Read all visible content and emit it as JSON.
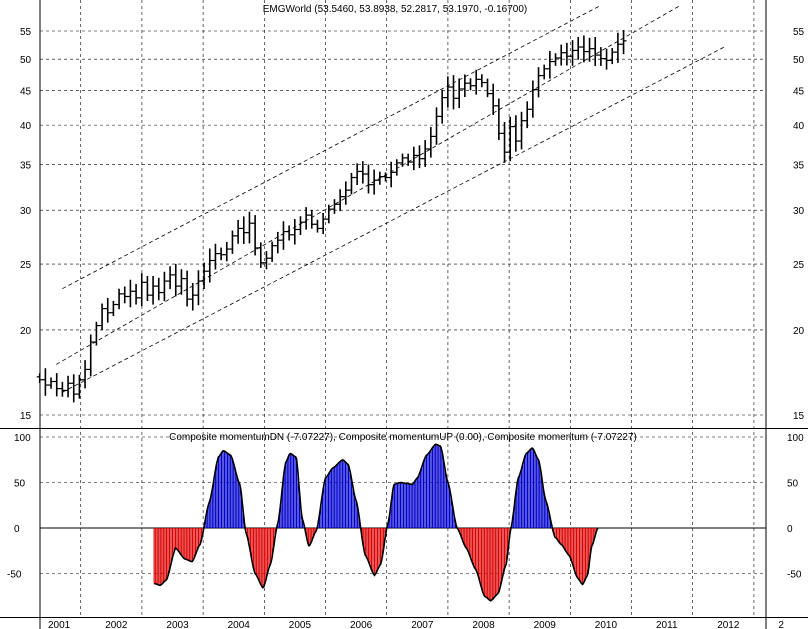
{
  "chart_data": [
    {
      "type": "ohlc",
      "title": "EMGWorld (53.5460, 53.8938, 52.2817, 53.1970, -0.16700)",
      "y_scale": "log",
      "ylim": [
        14.5,
        60
      ],
      "y_ticks": [
        15,
        20,
        25,
        30,
        35,
        40,
        45,
        50,
        55
      ],
      "x_tick_labels": [
        "2001",
        "2002",
        "2003",
        "2004",
        "2005",
        "2006",
        "2007",
        "2008",
        "2009",
        "2010",
        "2011",
        "2012",
        "2"
      ],
      "grid": true,
      "closes": [
        16.9,
        16.6,
        16.8,
        16.4,
        16.3,
        16.7,
        16.1,
        16.9,
        17.5,
        19.2,
        20.3,
        21.5,
        21.2,
        21.8,
        22.6,
        22.4,
        22.8,
        22.3,
        23.5,
        22.5,
        23.2,
        22.7,
        23.6,
        24.1,
        23.2,
        23.8,
        22.2,
        22.5,
        23.6,
        24.4,
        25.3,
        25.9,
        25.8,
        26.3,
        27.5,
        28.2,
        27.8,
        28.7,
        26.4,
        25.1,
        25.5,
        26.6,
        27.1,
        27.9,
        27.6,
        28.1,
        28.8,
        29.5,
        28.6,
        28.2,
        29.1,
        30.1,
        30.6,
        31.4,
        32.1,
        33.5,
        34.2,
        33.9,
        32.7,
        33.2,
        33.6,
        33.5,
        34.1,
        35.2,
        35.8,
        35.3,
        36.1,
        35.7,
        36.9,
        38.5,
        41.2,
        43.9,
        45.5,
        43.8,
        45.2,
        46.1,
        45.7,
        46.7,
        46.2,
        44.5,
        42.7,
        38.9,
        36.5,
        39.8,
        37.9,
        40.6,
        42.2,
        45.1,
        47.3,
        48.4,
        49.6,
        50.2,
        51.1,
        50.5,
        51.5,
        52.1,
        51.3,
        51.8,
        50.7,
        50.1,
        49.8,
        51.2,
        52.6,
        53.2
      ],
      "channel": {
        "upper": [
          [
            2001.3,
            23.0
          ],
          [
            2010.1,
            60.0
          ]
        ],
        "middle": [
          [
            2001.2,
            17.8
          ],
          [
            2011.4,
            60.0
          ]
        ],
        "lower": [
          [
            2001.3,
            16.2
          ],
          [
            2012.15,
            52.3
          ]
        ]
      }
    },
    {
      "type": "bar",
      "title": "Composite momentumDN (-7.07227), Composite momentumUP (0.00), Composite momentum (-7.07227)",
      "ylim": [
        -90,
        105
      ],
      "y_ticks": [
        100,
        50,
        0,
        -50
      ],
      "series": [
        {
          "name": "Composite momentumDN",
          "color": "#dd0000"
        },
        {
          "name": "Composite momentumUP",
          "color": "#0000cc"
        },
        {
          "name": "Composite momentum",
          "color": "#000000"
        }
      ],
      "knots": [
        [
          2002.8,
          -61
        ],
        [
          2002.9,
          -63
        ],
        [
          2003.0,
          -57
        ],
        [
          2003.15,
          -22
        ],
        [
          2003.3,
          -34
        ],
        [
          2003.42,
          -37
        ],
        [
          2003.55,
          -18
        ],
        [
          2003.7,
          28
        ],
        [
          2003.85,
          78
        ],
        [
          2003.93,
          85
        ],
        [
          2004.05,
          80
        ],
        [
          2004.2,
          48
        ],
        [
          2004.3,
          -5
        ],
        [
          2004.45,
          -50
        ],
        [
          2004.58,
          -66
        ],
        [
          2004.7,
          -40
        ],
        [
          2004.82,
          5
        ],
        [
          2004.95,
          72
        ],
        [
          2005.02,
          82
        ],
        [
          2005.12,
          78
        ],
        [
          2005.22,
          10
        ],
        [
          2005.33,
          -20
        ],
        [
          2005.45,
          -3
        ],
        [
          2005.6,
          55
        ],
        [
          2005.72,
          66
        ],
        [
          2005.88,
          75
        ],
        [
          2005.97,
          70
        ],
        [
          2006.1,
          30
        ],
        [
          2006.25,
          -30
        ],
        [
          2006.4,
          -52
        ],
        [
          2006.5,
          -40
        ],
        [
          2006.62,
          5
        ],
        [
          2006.72,
          48
        ],
        [
          2006.82,
          50
        ],
        [
          2006.92,
          49
        ],
        [
          2007.02,
          48
        ],
        [
          2007.1,
          55
        ],
        [
          2007.25,
          80
        ],
        [
          2007.4,
          92
        ],
        [
          2007.48,
          90
        ],
        [
          2007.6,
          50
        ],
        [
          2007.75,
          0
        ],
        [
          2007.9,
          -22
        ],
        [
          2008.05,
          -45
        ],
        [
          2008.2,
          -75
        ],
        [
          2008.3,
          -80
        ],
        [
          2008.42,
          -72
        ],
        [
          2008.55,
          -40
        ],
        [
          2008.63,
          0
        ],
        [
          2008.75,
          55
        ],
        [
          2008.88,
          82
        ],
        [
          2008.98,
          88
        ],
        [
          2009.08,
          75
        ],
        [
          2009.2,
          30
        ],
        [
          2009.35,
          -10
        ],
        [
          2009.45,
          -18
        ],
        [
          2009.58,
          -30
        ],
        [
          2009.72,
          -55
        ],
        [
          2009.8,
          -62
        ],
        [
          2009.88,
          -52
        ],
        [
          2009.95,
          -20
        ],
        [
          2010.05,
          0
        ]
      ],
      "last_values": {
        "Composite momentumDN": -7.07227,
        "Composite momentumUP": 0.0,
        "Composite momentum": -7.07227
      }
    }
  ]
}
